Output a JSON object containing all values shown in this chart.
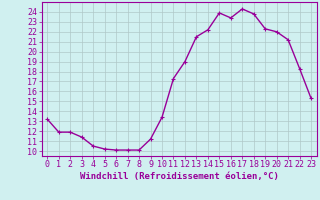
{
  "x": [
    0,
    1,
    2,
    3,
    4,
    5,
    6,
    7,
    8,
    9,
    10,
    11,
    12,
    13,
    14,
    15,
    16,
    17,
    18,
    19,
    20,
    21,
    22,
    23
  ],
  "y": [
    13.2,
    11.9,
    11.9,
    11.4,
    10.5,
    10.2,
    10.1,
    10.1,
    10.1,
    11.2,
    13.4,
    17.3,
    19.0,
    21.5,
    22.2,
    23.9,
    23.4,
    24.3,
    23.8,
    22.3,
    22.0,
    21.2,
    18.3,
    15.3
  ],
  "line_color": "#990099",
  "marker_color": "#990099",
  "bg_color": "#d0f0f0",
  "grid_color": "#b0c8c8",
  "xlabel": "Windchill (Refroidissement éolien,°C)",
  "ylabel_ticks": [
    10,
    11,
    12,
    13,
    14,
    15,
    16,
    17,
    18,
    19,
    20,
    21,
    22,
    23,
    24
  ],
  "xlim": [
    -0.5,
    23.5
  ],
  "ylim": [
    9.5,
    25.0
  ],
  "xlabel_fontsize": 6.5,
  "tick_fontsize": 6.0,
  "line_width": 1.0,
  "marker_size": 2.5
}
